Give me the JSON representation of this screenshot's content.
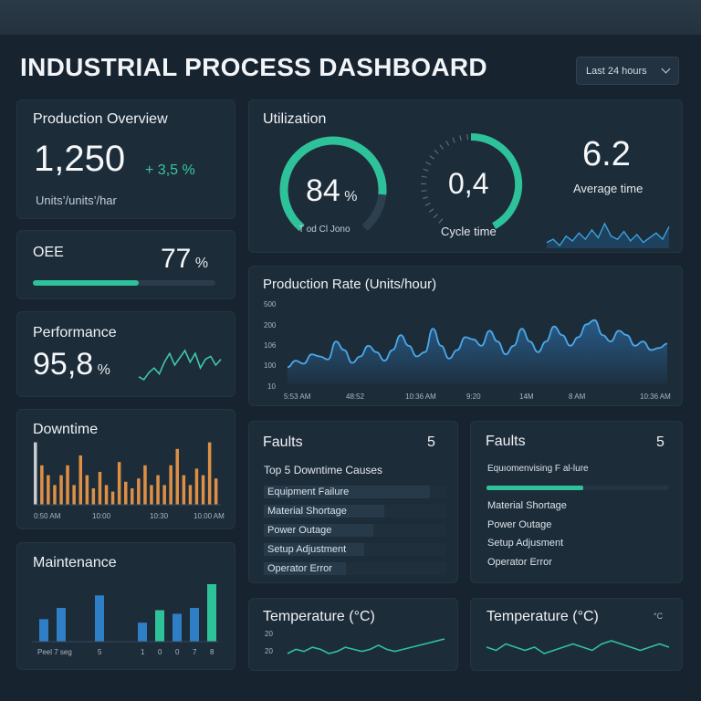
{
  "header": {
    "title": "INDUSTRIAL PROCESS DASHBOARD",
    "time_range": "Last 24 hours"
  },
  "production_overview": {
    "title": "Production Overview",
    "value": "1,250",
    "change": "+ 3,5 %",
    "unit_label": "Units’/units’/har"
  },
  "oee": {
    "title": "OEE",
    "value": "77",
    "unit": "%",
    "fill": 0.58
  },
  "performance": {
    "title": "Performance",
    "value": "95,8",
    "unit": "%",
    "spark": [
      12,
      10,
      15,
      18,
      14,
      22,
      28,
      20,
      25,
      30,
      22,
      28,
      18,
      24,
      26,
      20,
      24
    ]
  },
  "downtime": {
    "title": "Downtime",
    "bars": [
      0.95,
      0.6,
      0.45,
      0.3,
      0.45,
      0.6,
      0.3,
      0.75,
      0.45,
      0.25,
      0.5,
      0.3,
      0.2,
      0.65,
      0.35,
      0.25,
      0.4,
      0.6,
      0.3,
      0.45,
      0.3,
      0.6,
      0.85,
      0.45,
      0.3,
      0.55,
      0.45,
      0.95,
      0.4
    ],
    "bar_colors": [
      "#c9ccd0",
      "#de8f46"
    ],
    "ticks": [
      "0:50 AM",
      "10:00",
      "10:30",
      "10.00 AM"
    ]
  },
  "maintenance": {
    "title": "Maintenance",
    "bars": [
      {
        "v": 0.38,
        "c": "#2f7fc7"
      },
      {
        "v": 0.57,
        "c": "#2f7fc7"
      },
      {
        "v": 0.78,
        "c": "#2f7fc7"
      },
      {
        "v": 0.32,
        "c": "#2f7fc7"
      },
      {
        "v": 0.53,
        "c": "#2ec29a"
      },
      {
        "v": 0.47,
        "c": "#2f7fc7"
      },
      {
        "v": 0.57,
        "c": "#2f7fc7"
      },
      {
        "v": 0.97,
        "c": "#2ec29a"
      }
    ],
    "ticks": [
      "Peel 7 seg",
      "5",
      "1",
      "0",
      "0",
      "7",
      "8"
    ]
  },
  "utilization": {
    "title": "Utilization",
    "gauge1": {
      "value": "84",
      "unit": "%",
      "fraction": 0.84,
      "caption": "T od Cl Jono"
    },
    "gauge2": {
      "value": "0,4",
      "fraction": 0.42,
      "caption": "Cycle time"
    },
    "avg": {
      "value": "6.2",
      "caption": "Average time"
    },
    "spark": [
      8,
      10,
      6,
      12,
      9,
      14,
      10,
      16,
      11,
      20,
      12,
      10,
      15,
      9,
      13,
      8,
      11,
      14,
      10,
      18
    ]
  },
  "production_rate": {
    "title": "Production Rate (Units/hour)",
    "y_ticks": [
      "500",
      "200",
      "106",
      "100",
      "10"
    ],
    "x_ticks": [
      "5:53 AM",
      "48:52",
      "10:36 AM",
      "9:20",
      "14M",
      "8 AM",
      "10:36 AM"
    ],
    "series": [
      100,
      115,
      108,
      130,
      125,
      118,
      160,
      140,
      110,
      125,
      150,
      135,
      115,
      140,
      175,
      150,
      125,
      135,
      190,
      150,
      120,
      140,
      170,
      165,
      150,
      185,
      160,
      130,
      150,
      190,
      160,
      135,
      160,
      195,
      175,
      150,
      170,
      200,
      210,
      175,
      160,
      185,
      175,
      150,
      160,
      140,
      145,
      155
    ]
  },
  "faults1": {
    "title": "Faults",
    "count": "5",
    "subtitle": "Top 5 Downtime Causes",
    "items": [
      {
        "label": "Equipment Failure",
        "w": 0.91
      },
      {
        "label": "Material Shortage",
        "w": 0.66
      },
      {
        "label": "Power Outage",
        "w": 0.6
      },
      {
        "label": "Setup Adjustment",
        "w": 0.55
      },
      {
        "label": "Operator Error",
        "w": 0.45
      }
    ]
  },
  "faults2": {
    "title": "Faults",
    "count": "5",
    "items": [
      "Equıomenvising F al-lure",
      "Material Shortage",
      "Power Outage",
      "Setup Adjusment",
      "Operator Error"
    ],
    "bar_fill": 0.53
  },
  "temp1": {
    "title": "Temperature (°C)",
    "ticks": [
      "20",
      "20"
    ],
    "series": [
      10,
      12,
      11,
      13,
      12,
      10,
      11,
      13,
      12,
      11,
      12,
      14,
      12,
      11,
      12,
      13,
      14,
      15,
      16,
      17
    ]
  },
  "temp2": {
    "title": "Temperature (°C)",
    "unit_tag": "°C",
    "series": [
      12,
      11,
      13,
      12,
      11,
      12,
      10,
      11,
      12,
      13,
      12,
      11,
      13,
      14,
      13,
      12,
      11,
      12,
      13,
      12
    ]
  }
}
